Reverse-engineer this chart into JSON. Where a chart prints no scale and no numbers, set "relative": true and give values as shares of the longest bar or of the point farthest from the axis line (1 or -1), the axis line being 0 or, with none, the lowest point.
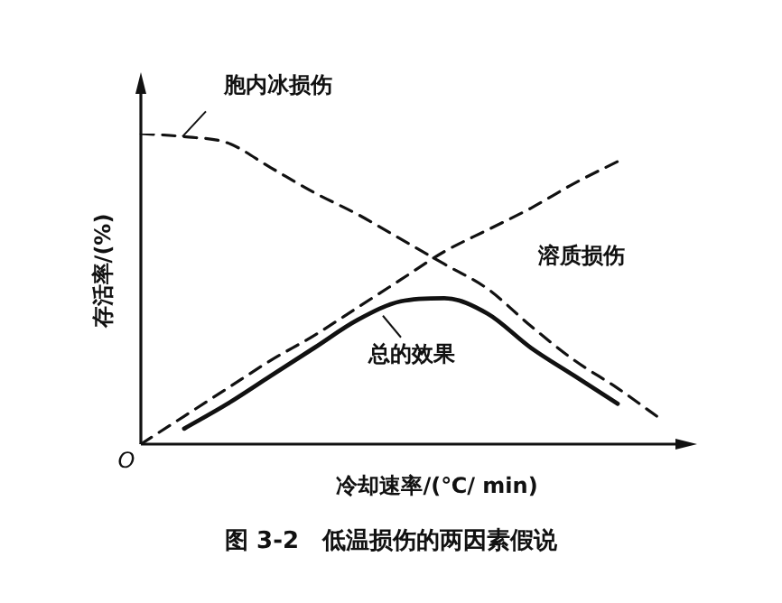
{
  "chart_data": {
    "type": "line",
    "title": "图 3-2　低温损伤的两因素假说",
    "xlabel": "冷却速率/(℃/ min)",
    "ylabel": "存活率/(%)",
    "relative": true,
    "marker": "none",
    "categories": [
      null,
      null,
      null,
      null,
      null,
      null,
      null,
      null,
      null,
      null,
      null,
      null,
      null
    ],
    "annotations": [
      "O"
    ],
    "series": [
      {
        "name": "胞内冰损伤",
        "color": "#111111",
        "line_style": "dashed",
        "values": [
          1,
          0.99,
          0.97,
          0.89,
          0.81,
          0.74,
          0.66,
          0.58,
          0.5,
          0.38,
          0.27,
          0.18,
          0.08
        ]
      },
      {
        "name": "溶质损伤",
        "color": "#111111",
        "line_style": "dashed",
        "values": [
          0,
          0.09,
          0.18,
          0.27,
          0.35,
          0.44,
          0.53,
          0.62,
          0.69,
          0.76,
          0.84,
          0.91,
          null
        ]
      },
      {
        "name": "总的效果",
        "color": "#111111",
        "line_style": "solid",
        "values": [
          null,
          0.05,
          0.13,
          0.22,
          0.31,
          0.4,
          0.46,
          0.47,
          0.42,
          0.31,
          0.22,
          0.13,
          null
        ]
      }
    ]
  }
}
